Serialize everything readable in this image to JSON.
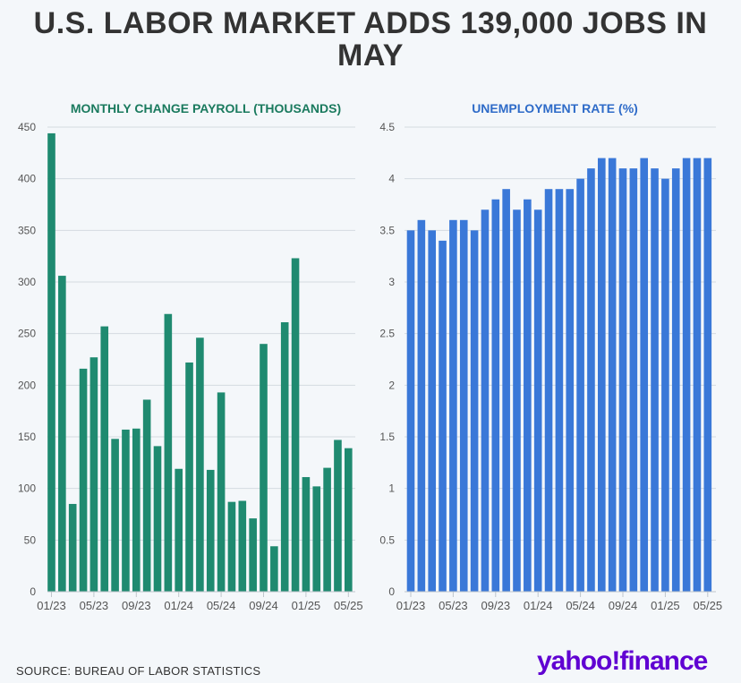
{
  "title": "U.S. LABOR MARKET ADDS 139,000 JOBS IN MAY",
  "source": "SOURCE: BUREAU OF LABOR STATISTICS",
  "logo": "yahoo!finance",
  "colors": {
    "payroll": "#1f8a70",
    "unemployment": "#3a78d8",
    "grid": "#d5dbe0"
  },
  "chart_data": [
    {
      "type": "bar",
      "title": "MONTHLY CHANGE PAYROLL (THOUSANDS)",
      "ylim": [
        0,
        450
      ],
      "yticks": [
        0,
        50,
        100,
        150,
        200,
        250,
        300,
        350,
        400,
        450
      ],
      "xticklabels": [
        "01/23",
        "05/23",
        "09/23",
        "01/24",
        "05/24",
        "09/24",
        "01/25",
        "05/25"
      ],
      "x": [
        "01/23",
        "02/23",
        "03/23",
        "04/23",
        "05/23",
        "06/23",
        "07/23",
        "08/23",
        "09/23",
        "10/23",
        "11/23",
        "12/23",
        "01/24",
        "02/24",
        "03/24",
        "04/24",
        "05/24",
        "06/24",
        "07/24",
        "08/24",
        "09/24",
        "10/24",
        "11/24",
        "12/24",
        "01/25",
        "02/25",
        "03/25",
        "04/25",
        "05/25"
      ],
      "values": [
        444,
        306,
        85,
        216,
        227,
        257,
        148,
        157,
        158,
        186,
        141,
        269,
        119,
        222,
        246,
        118,
        193,
        87,
        88,
        71,
        240,
        44,
        261,
        323,
        111,
        102,
        120,
        147,
        139
      ],
      "grid": true
    },
    {
      "type": "bar",
      "title": "UNEMPLOYMENT RATE (%)",
      "ylim": [
        0,
        4.5
      ],
      "yticks": [
        0,
        0.5,
        1,
        1.5,
        2,
        2.5,
        3,
        3.5,
        4,
        4.5
      ],
      "xticklabels": [
        "01/23",
        "05/23",
        "09/23",
        "01/24",
        "05/24",
        "09/24",
        "01/25",
        "05/25"
      ],
      "x": [
        "01/23",
        "02/23",
        "03/23",
        "04/23",
        "05/23",
        "06/23",
        "07/23",
        "08/23",
        "09/23",
        "10/23",
        "11/23",
        "12/23",
        "01/24",
        "02/24",
        "03/24",
        "04/24",
        "05/24",
        "06/24",
        "07/24",
        "08/24",
        "09/24",
        "10/24",
        "11/24",
        "12/24",
        "01/25",
        "02/25",
        "03/25",
        "04/25",
        "05/25"
      ],
      "values": [
        3.5,
        3.6,
        3.5,
        3.4,
        3.6,
        3.6,
        3.5,
        3.7,
        3.8,
        3.9,
        3.7,
        3.8,
        3.7,
        3.9,
        3.9,
        3.9,
        4.0,
        4.1,
        4.2,
        4.2,
        4.1,
        4.1,
        4.2,
        4.1,
        4.0,
        4.1,
        4.2,
        4.2,
        4.2
      ],
      "grid": true
    }
  ]
}
